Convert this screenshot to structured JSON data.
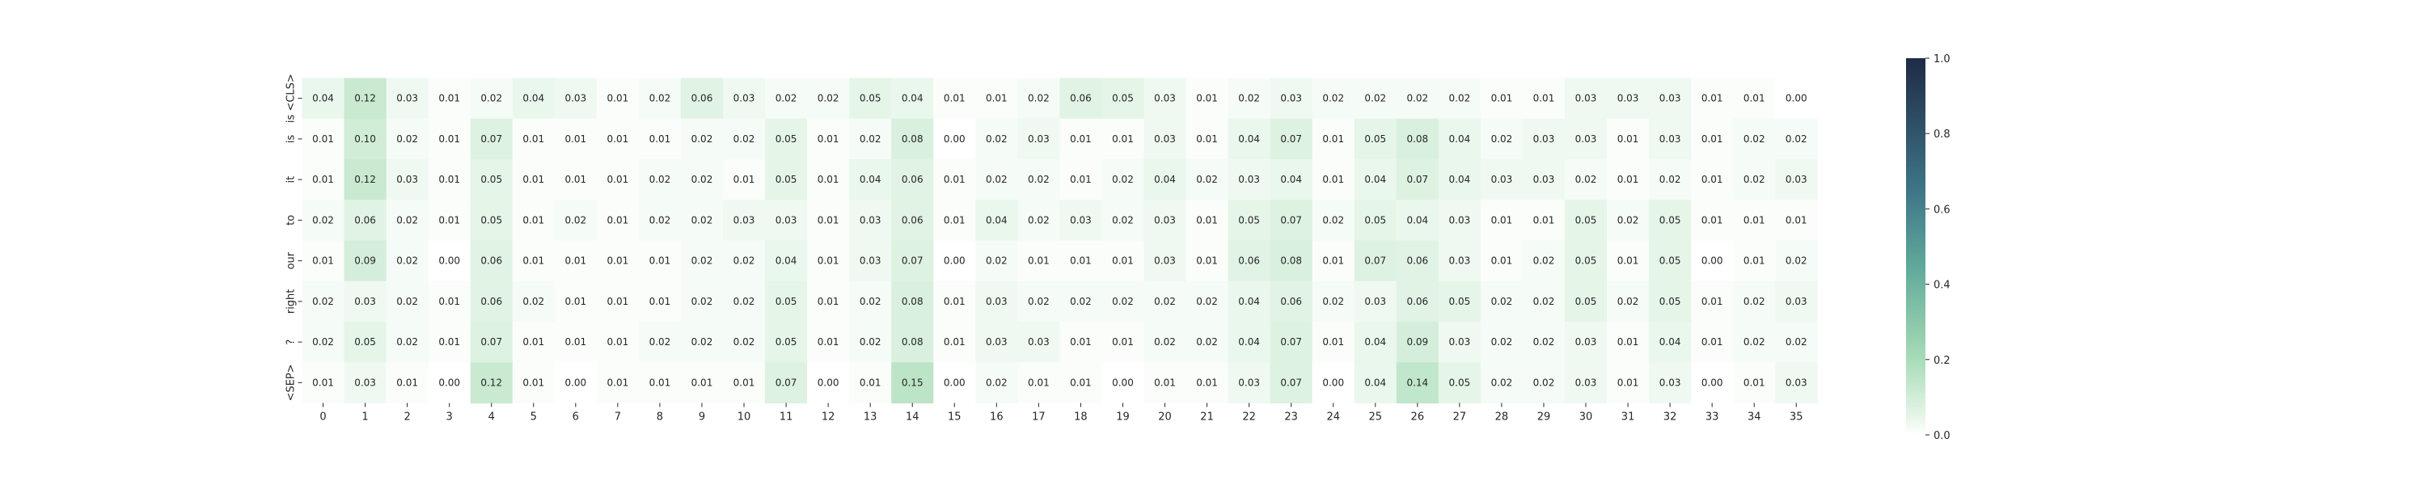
{
  "chart_data": {
    "type": "heatmap",
    "title": "",
    "xlabel": "",
    "ylabel": "",
    "x_tick_labels": [
      "0",
      "1",
      "2",
      "3",
      "4",
      "5",
      "6",
      "7",
      "8",
      "9",
      "10",
      "11",
      "12",
      "13",
      "14",
      "15",
      "16",
      "17",
      "18",
      "19",
      "20",
      "21",
      "22",
      "23",
      "24",
      "25",
      "26",
      "27",
      "28",
      "29",
      "30",
      "31",
      "32",
      "33",
      "34",
      "35"
    ],
    "y_tick_labels": [
      "is <CLS>",
      "is",
      "it",
      "to",
      "our",
      "right",
      "?",
      "<SEP>"
    ],
    "value_range": [
      0.0,
      1.0
    ],
    "colorbar_ticks": [
      "0.0",
      "0.2",
      "0.4",
      "0.6",
      "0.8",
      "1.0"
    ],
    "colormap": {
      "low": "#ffffff",
      "mid1": "#e5f5e8",
      "mid2": "#a8dcb7",
      "mid3": "#5fa89a",
      "mid4": "#3e7588",
      "high": "#1f2b45"
    },
    "values": [
      [
        0.04,
        0.12,
        0.03,
        0.01,
        0.02,
        0.04,
        0.03,
        0.01,
        0.02,
        0.06,
        0.03,
        0.02,
        0.02,
        0.05,
        0.04,
        0.01,
        0.01,
        0.02,
        0.06,
        0.05,
        0.03,
        0.01,
        0.02,
        0.03,
        0.02,
        0.02,
        0.02,
        0.02,
        0.01,
        0.01,
        0.03,
        0.03,
        0.03,
        0.01,
        0.01,
        0.0
      ],
      [
        0.01,
        0.1,
        0.02,
        0.01,
        0.07,
        0.01,
        0.01,
        0.01,
        0.01,
        0.02,
        0.02,
        0.05,
        0.01,
        0.02,
        0.08,
        0.0,
        0.02,
        0.03,
        0.01,
        0.01,
        0.03,
        0.01,
        0.04,
        0.07,
        0.01,
        0.05,
        0.08,
        0.04,
        0.02,
        0.03,
        0.03,
        0.01,
        0.03,
        0.01,
        0.02,
        0.02
      ],
      [
        0.01,
        0.12,
        0.03,
        0.01,
        0.05,
        0.01,
        0.01,
        0.01,
        0.02,
        0.02,
        0.01,
        0.05,
        0.01,
        0.04,
        0.06,
        0.01,
        0.02,
        0.02,
        0.01,
        0.02,
        0.04,
        0.02,
        0.03,
        0.04,
        0.01,
        0.04,
        0.07,
        0.04,
        0.03,
        0.03,
        0.02,
        0.01,
        0.02,
        0.01,
        0.02,
        0.03
      ],
      [
        0.02,
        0.06,
        0.02,
        0.01,
        0.05,
        0.01,
        0.02,
        0.01,
        0.02,
        0.02,
        0.03,
        0.03,
        0.01,
        0.03,
        0.06,
        0.01,
        0.04,
        0.02,
        0.03,
        0.02,
        0.03,
        0.01,
        0.05,
        0.07,
        0.02,
        0.05,
        0.04,
        0.03,
        0.01,
        0.01,
        0.05,
        0.02,
        0.05,
        0.01,
        0.01,
        0.01
      ],
      [
        0.01,
        0.09,
        0.02,
        0.0,
        0.06,
        0.01,
        0.01,
        0.01,
        0.01,
        0.02,
        0.02,
        0.04,
        0.01,
        0.03,
        0.07,
        0.0,
        0.02,
        0.01,
        0.01,
        0.01,
        0.03,
        0.01,
        0.06,
        0.08,
        0.01,
        0.07,
        0.06,
        0.03,
        0.01,
        0.02,
        0.05,
        0.01,
        0.05,
        0.0,
        0.01,
        0.02
      ],
      [
        0.02,
        0.03,
        0.02,
        0.01,
        0.06,
        0.02,
        0.01,
        0.01,
        0.01,
        0.02,
        0.02,
        0.05,
        0.01,
        0.02,
        0.08,
        0.01,
        0.03,
        0.02,
        0.02,
        0.02,
        0.02,
        0.02,
        0.04,
        0.06,
        0.02,
        0.03,
        0.06,
        0.05,
        0.02,
        0.02,
        0.05,
        0.02,
        0.05,
        0.01,
        0.02,
        0.03
      ],
      [
        0.02,
        0.05,
        0.02,
        0.01,
        0.07,
        0.01,
        0.01,
        0.01,
        0.02,
        0.02,
        0.02,
        0.05,
        0.01,
        0.02,
        0.08,
        0.01,
        0.03,
        0.03,
        0.01,
        0.01,
        0.02,
        0.02,
        0.04,
        0.07,
        0.01,
        0.04,
        0.09,
        0.03,
        0.02,
        0.02,
        0.03,
        0.01,
        0.04,
        0.01,
        0.02,
        0.02
      ],
      [
        0.01,
        0.03,
        0.01,
        0.0,
        0.12,
        0.01,
        0.0,
        0.01,
        0.01,
        0.01,
        0.01,
        0.07,
        0.0,
        0.01,
        0.15,
        0.0,
        0.02,
        0.01,
        0.01,
        0.0,
        0.01,
        0.01,
        0.03,
        0.07,
        0.0,
        0.04,
        0.14,
        0.05,
        0.02,
        0.02,
        0.03,
        0.01,
        0.03,
        0.0,
        0.01,
        0.03
      ]
    ]
  }
}
